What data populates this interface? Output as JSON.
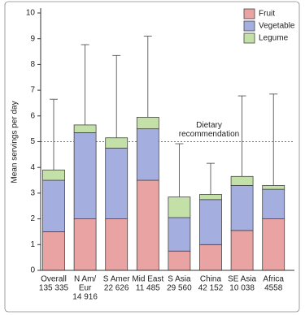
{
  "chart_data": {
    "type": "stacked-bar",
    "ylabel": "Mean servings per day",
    "categories": [
      [
        "Overall",
        "135 335"
      ],
      [
        "N Am/",
        "Eur",
        "14 916"
      ],
      [
        "S Amer",
        "22 626"
      ],
      [
        "Mid East",
        "11 485"
      ],
      [
        "S Asia",
        "29 560"
      ],
      [
        "China",
        "42 152"
      ],
      [
        "SE Asia",
        "10 038"
      ],
      [
        "Africa",
        "4558"
      ]
    ],
    "series": [
      {
        "name": "Fruit",
        "color": "#e9a3a3",
        "values": [
          1.5,
          2.0,
          2.0,
          3.5,
          0.75,
          1.0,
          1.55,
          2.0
        ]
      },
      {
        "name": "Vegetable",
        "color": "#a4afe0",
        "values": [
          2.0,
          3.35,
          2.75,
          2.0,
          1.3,
          1.75,
          1.75,
          1.15
        ]
      },
      {
        "name": "Legume",
        "color": "#c3e0a9",
        "values": [
          0.4,
          0.3,
          0.4,
          0.45,
          0.8,
          0.2,
          0.35,
          0.15
        ]
      }
    ],
    "error_upper": [
      6.65,
      8.77,
      8.35,
      9.1,
      4.92,
      4.16,
      6.78,
      6.85
    ],
    "reference": {
      "value": 5,
      "label": [
        "Dietary",
        "recommendation"
      ]
    },
    "ylim": [
      0,
      10
    ],
    "yticks": [
      0,
      1,
      2,
      3,
      4,
      5,
      6,
      7,
      8,
      9,
      10
    ],
    "legend": "top-right"
  }
}
